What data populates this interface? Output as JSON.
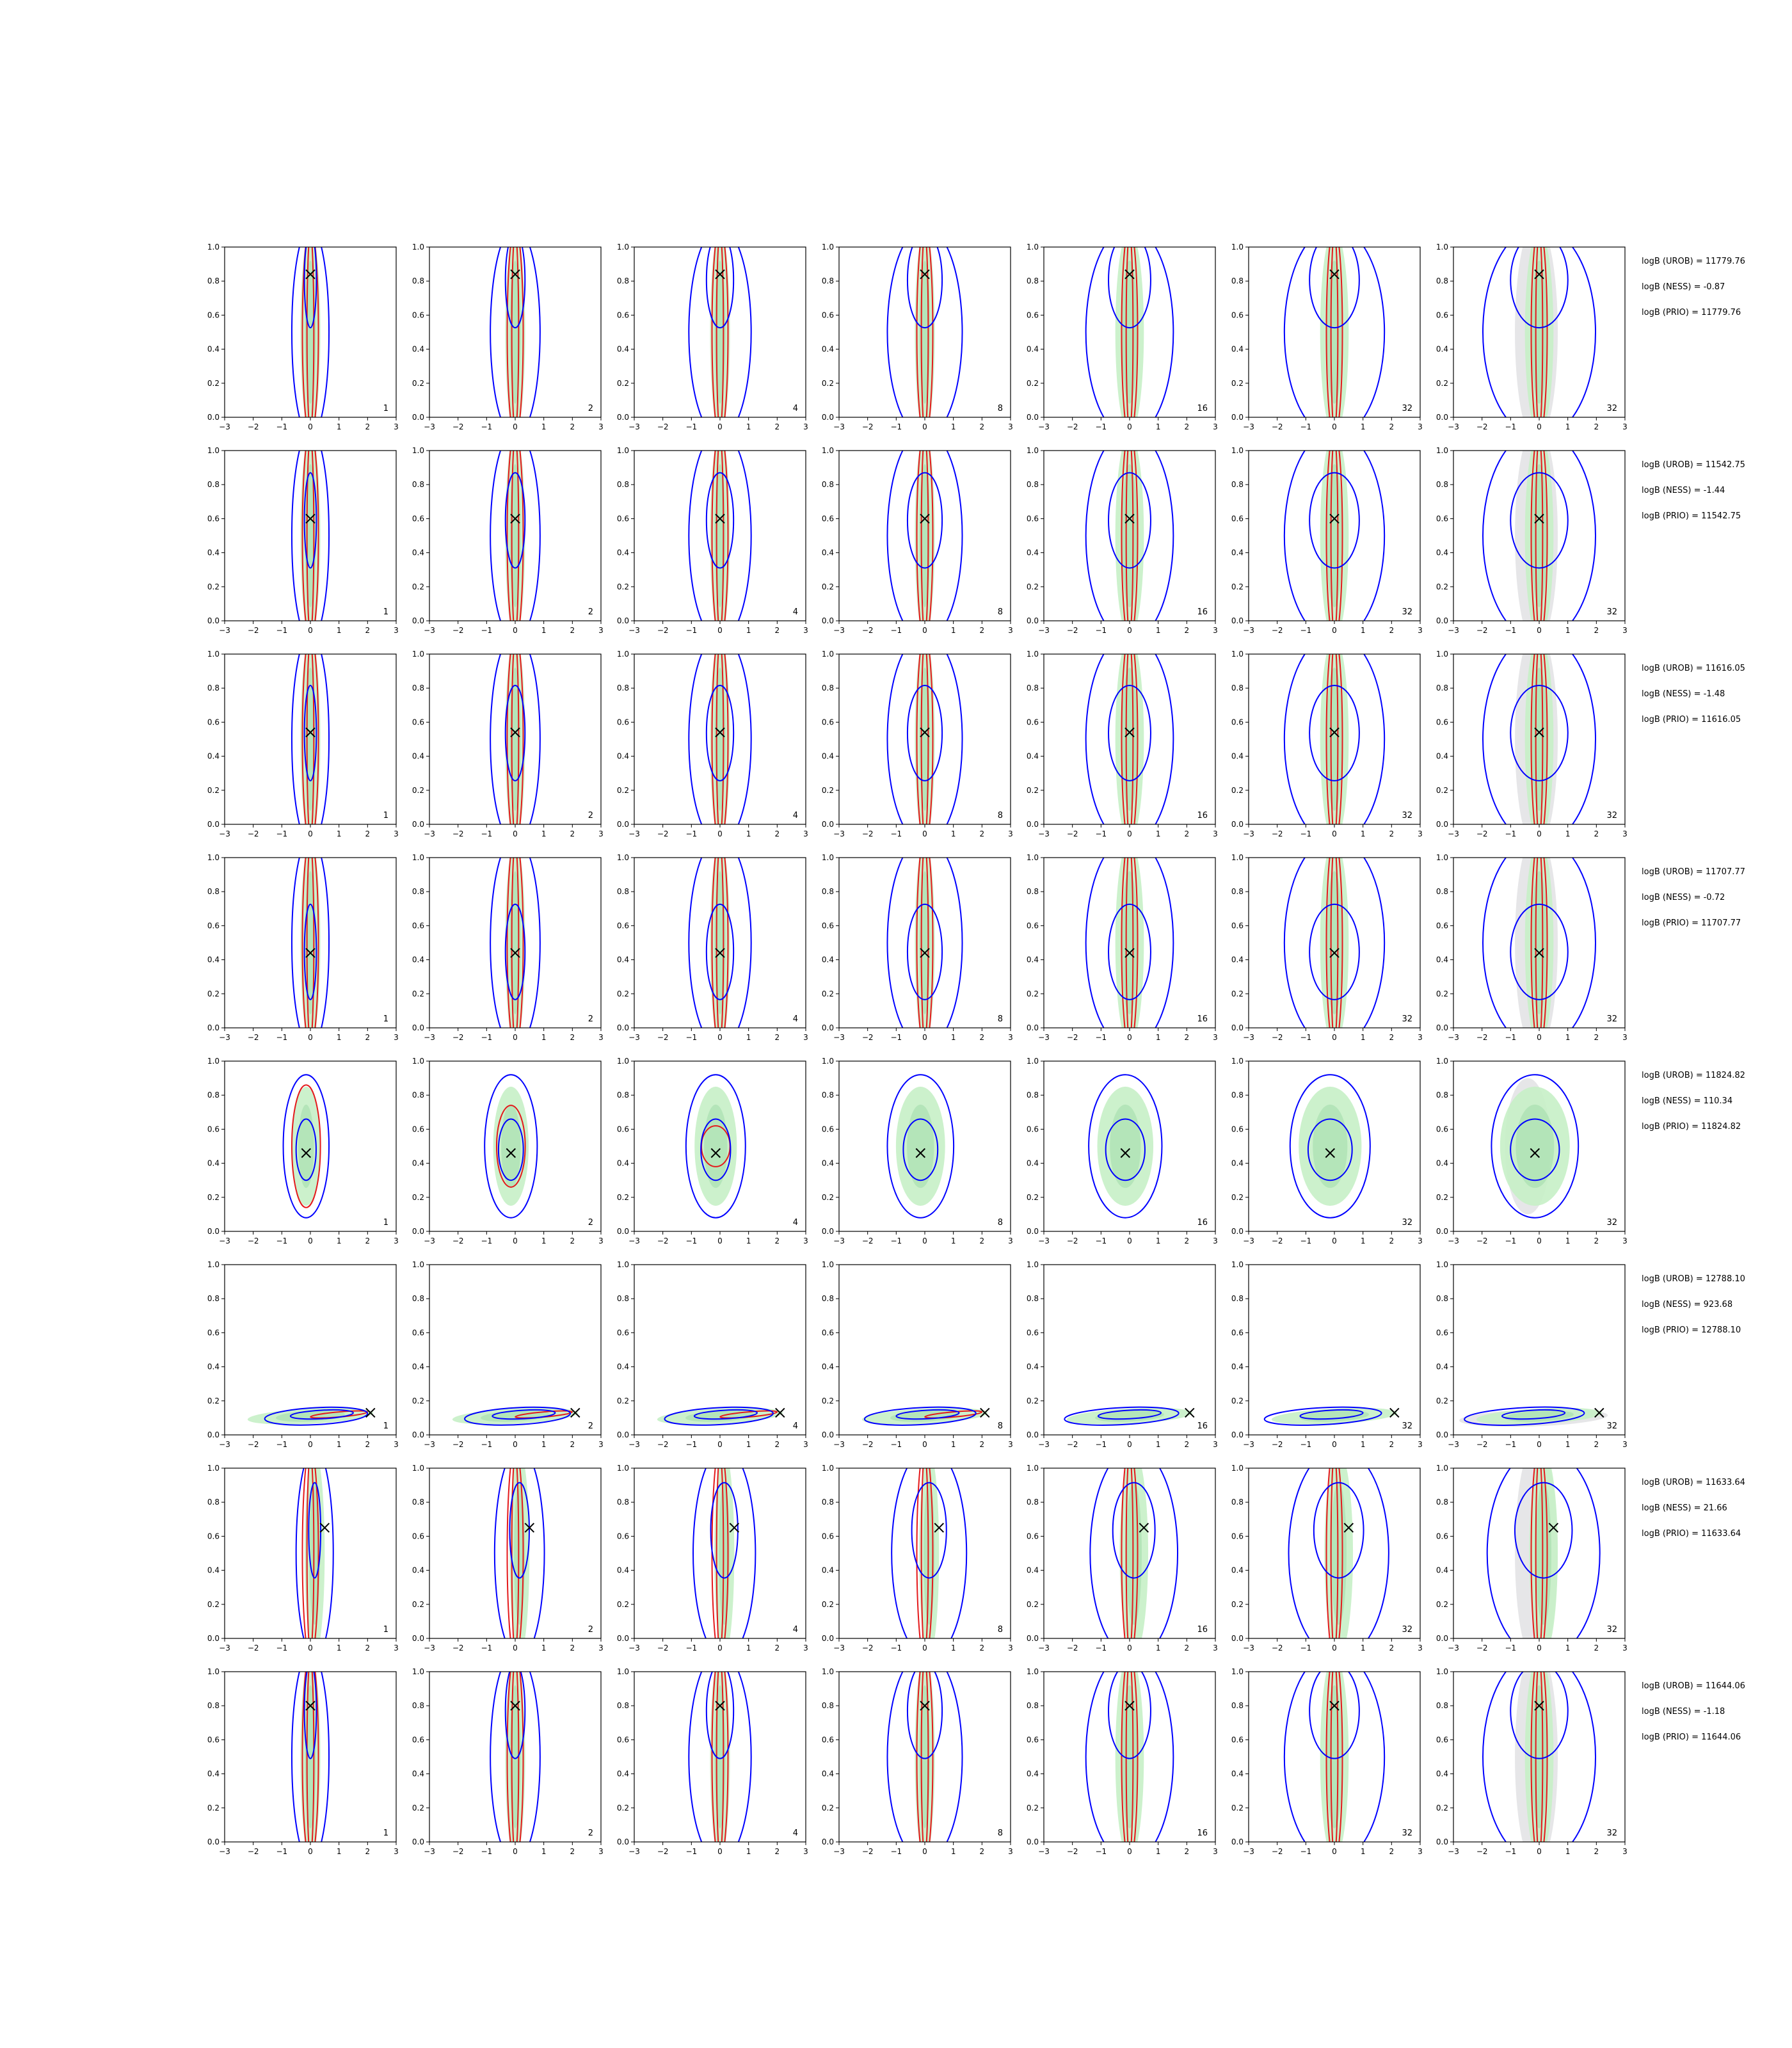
{
  "chart_data": {
    "type": "contour-grid",
    "xlim": [
      -3,
      3
    ],
    "ylim": [
      0,
      1
    ],
    "x_ticks": [
      "−3",
      "−2",
      "−1",
      "0",
      "1",
      "2",
      "3"
    ],
    "y_ticks": [
      "0.0",
      "0.2",
      "0.4",
      "0.6",
      "0.8",
      "1.0"
    ],
    "column_labels": [
      "1",
      "2",
      "4",
      "8",
      "16",
      "32",
      "32"
    ],
    "colors": {
      "blue_contour": "#0000ff",
      "red_contour": "#e41a1c",
      "green_fill": "#c7f0c7",
      "green_dark": "#aadfb0",
      "grey_fill": "#e6e6e8",
      "grey_dark": "#d2d2d6",
      "marker": "#000000"
    },
    "rows": [
      {
        "truth": [
          0.0,
          0.84
        ],
        "logB": [
          "logB (UROB) = 11779.76",
          "logB (NESS) = -0.87",
          "logB (PRIO) = 11779.76"
        ]
      },
      {
        "truth": [
          0.0,
          0.6
        ],
        "logB": [
          "logB (UROB) = 11542.75",
          "logB (NESS) = -1.44",
          "logB (PRIO) = 11542.75"
        ]
      },
      {
        "truth": [
          0.0,
          0.54
        ],
        "logB": [
          "logB (UROB) = 11616.05",
          "logB (NESS) = -1.48",
          "logB (PRIO) = 11616.05"
        ]
      },
      {
        "truth": [
          0.0,
          0.44
        ],
        "logB": [
          "logB (UROB) = 11707.77",
          "logB (NESS) = -0.72",
          "logB (PRIO) = 11707.77"
        ]
      },
      {
        "truth": [
          -0.15,
          0.46
        ],
        "logB": [
          "logB (UROB) = 11824.82",
          "logB (NESS) = 110.34",
          "logB (PRIO) = 11824.82"
        ]
      },
      {
        "truth": [
          2.1,
          0.13
        ],
        "logB": [
          "logB (UROB) = 12788.10",
          "logB (NESS) = 923.68",
          "logB (PRIO) = 12788.10"
        ]
      },
      {
        "truth": [
          0.5,
          0.65
        ],
        "logB": [
          "logB (UROB) = 11633.64",
          "logB (NESS) = 21.66",
          "logB (PRIO) = 11633.64"
        ]
      },
      {
        "truth": [
          0.0,
          0.8
        ],
        "logB": [
          "logB (UROB) = 11644.06",
          "logB (NESS) = -1.18",
          "logB (PRIO) = 11644.06"
        ]
      }
    ]
  }
}
